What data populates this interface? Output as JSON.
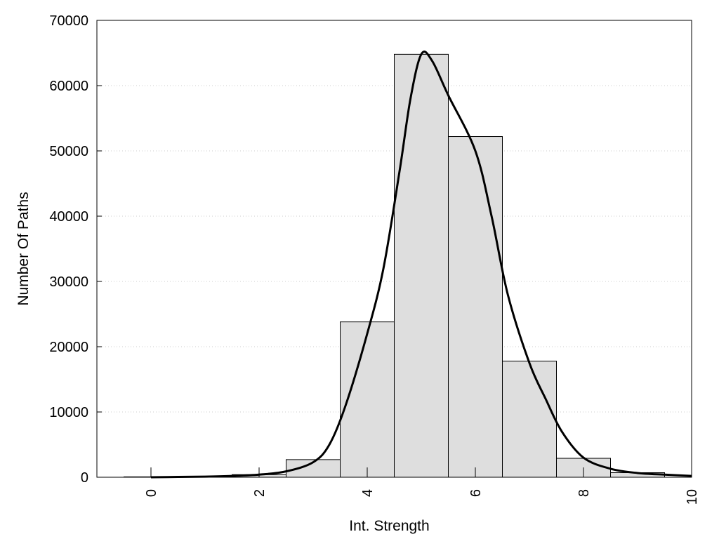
{
  "chart_data": {
    "type": "bar",
    "title": "",
    "xlabel": "Int. Strength",
    "ylabel": "Number Of Paths",
    "xlim": [
      -1,
      10
    ],
    "ylim": [
      0,
      70000
    ],
    "x_ticks": [
      0,
      2,
      4,
      6,
      8,
      10
    ],
    "y_ticks": [
      0,
      10000,
      20000,
      30000,
      40000,
      50000,
      60000,
      70000
    ],
    "grid": "horizontal-dotted",
    "legend": "none",
    "bar_color": "#dedede",
    "bar_edge_color": "#000000",
    "bars": [
      {
        "x": 0,
        "value": 60
      },
      {
        "x": 1,
        "value": 130
      },
      {
        "x": 2,
        "value": 400
      },
      {
        "x": 3,
        "value": 2700
      },
      {
        "x": 4,
        "value": 23800
      },
      {
        "x": 5,
        "value": 64800
      },
      {
        "x": 6,
        "value": 52200
      },
      {
        "x": 7,
        "value": 17800
      },
      {
        "x": 8,
        "value": 2900
      },
      {
        "x": 9,
        "value": 700
      }
    ],
    "density_curve": {
      "color": "#000000",
      "points": [
        [
          0,
          0
        ],
        [
          0.5,
          50
        ],
        [
          1,
          100
        ],
        [
          1.5,
          200
        ],
        [
          2,
          400
        ],
        [
          2.5,
          900
        ],
        [
          3,
          2300
        ],
        [
          3.3,
          5000
        ],
        [
          3.6,
          11000
        ],
        [
          4,
          22000
        ],
        [
          4.3,
          32000
        ],
        [
          4.6,
          47000
        ],
        [
          4.8,
          58000
        ],
        [
          5,
          64800
        ],
        [
          5.2,
          63800
        ],
        [
          5.5,
          58500
        ],
        [
          6,
          50000
        ],
        [
          6.3,
          40000
        ],
        [
          6.6,
          28000
        ],
        [
          7,
          17500
        ],
        [
          7.3,
          12000
        ],
        [
          7.6,
          7000
        ],
        [
          8,
          3000
        ],
        [
          8.5,
          1300
        ],
        [
          9,
          650
        ],
        [
          9.5,
          400
        ],
        [
          10,
          200
        ]
      ]
    }
  }
}
